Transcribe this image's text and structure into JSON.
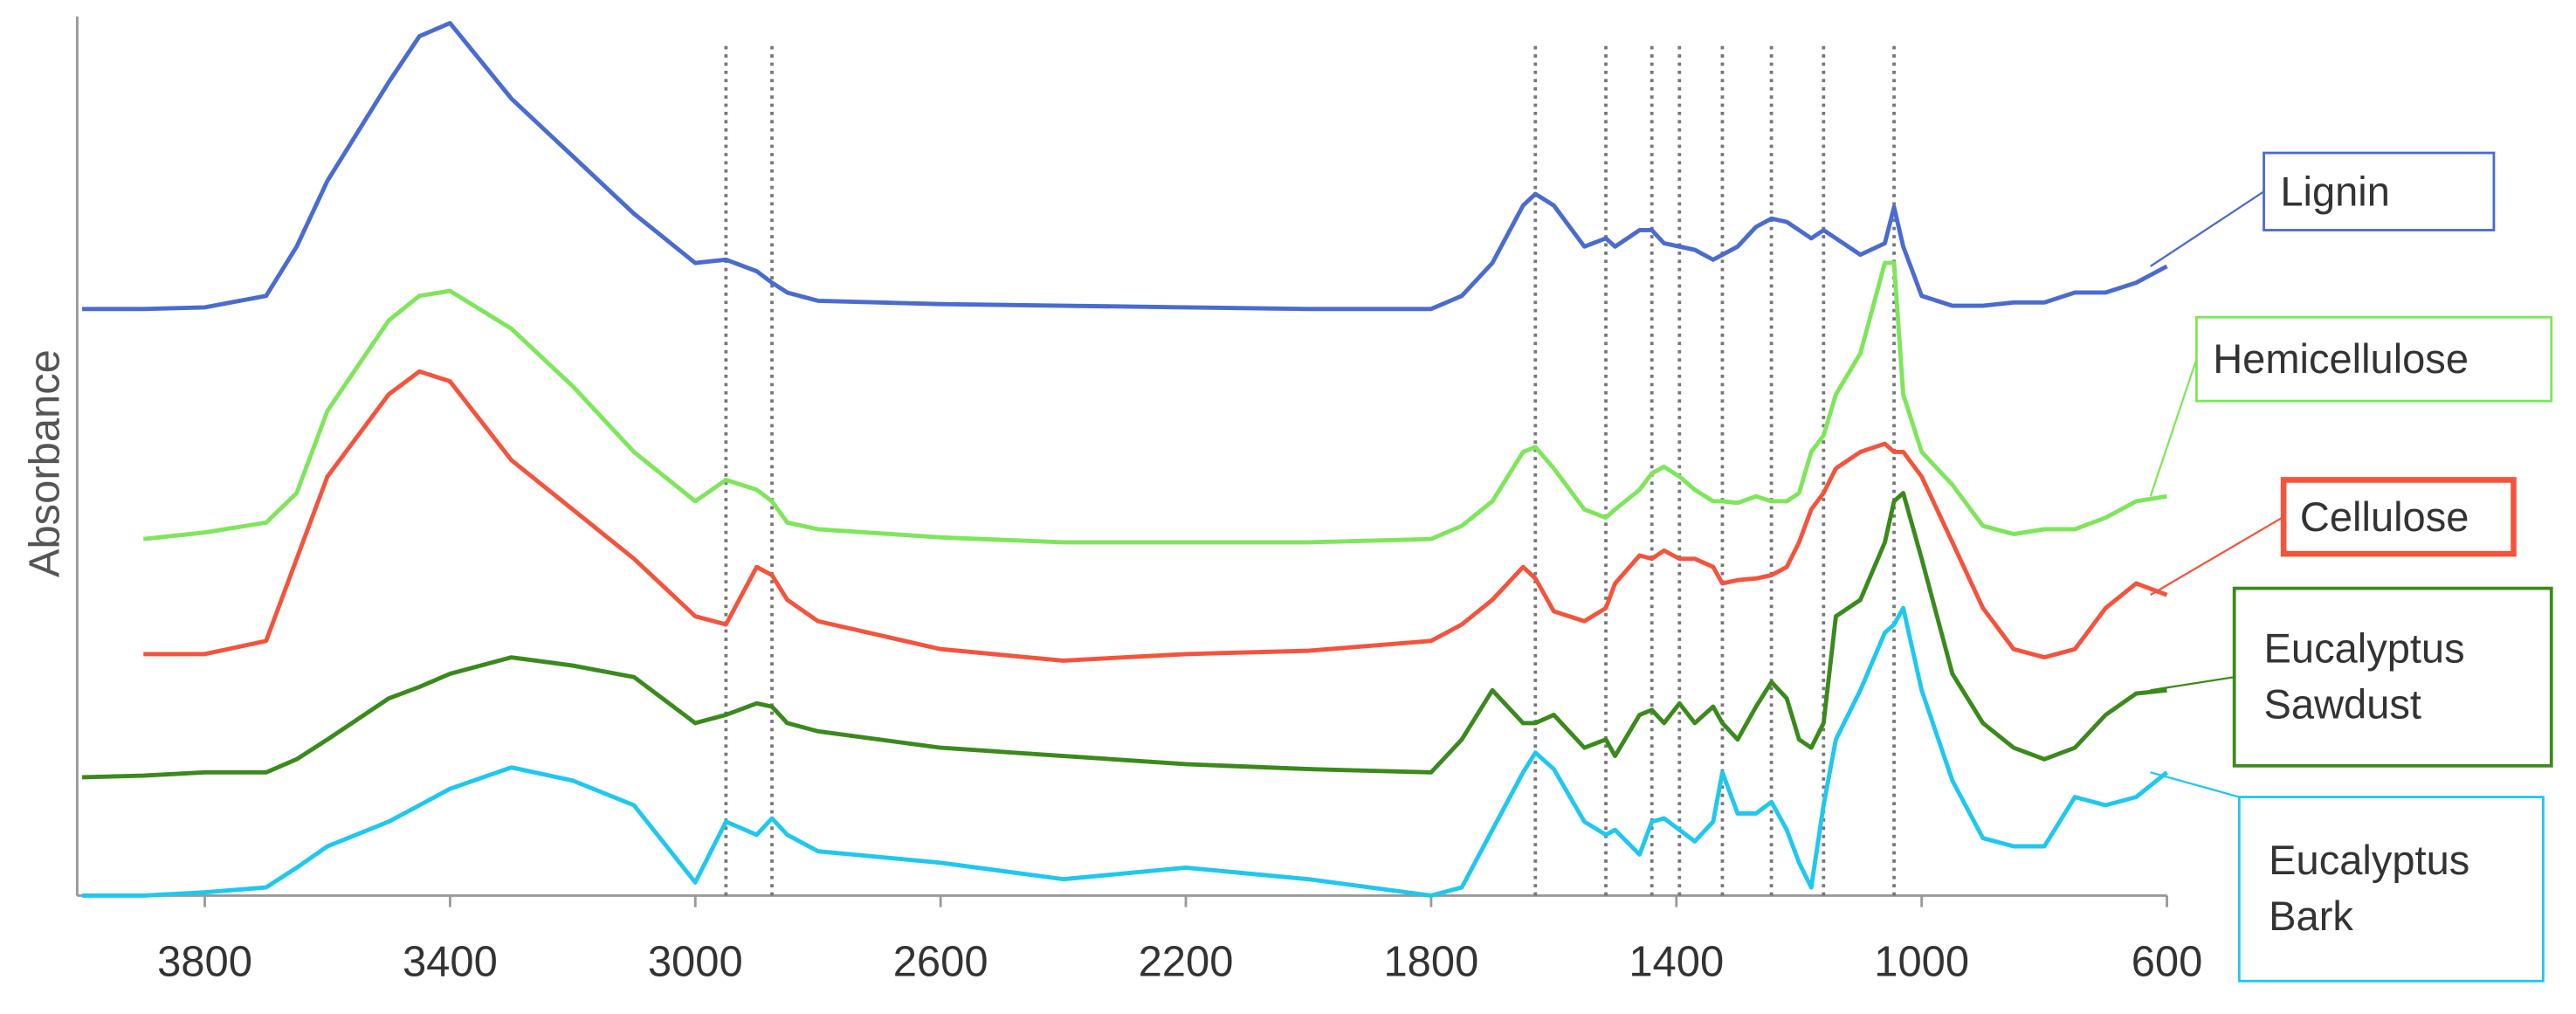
{
  "chart_data": {
    "type": "line",
    "y_label": "Absorbance",
    "x": [
      4000,
      3900,
      3800,
      3700,
      3650,
      3600,
      3500,
      3450,
      3400,
      3300,
      3200,
      3100,
      3000,
      2950,
      2900,
      2875,
      2850,
      2800,
      2600,
      2400,
      2200,
      2000,
      1800,
      1750,
      1700,
      1650,
      1630,
      1600,
      1550,
      1515,
      1500,
      1460,
      1440,
      1420,
      1395,
      1370,
      1340,
      1325,
      1300,
      1270,
      1245,
      1220,
      1200,
      1180,
      1160,
      1140,
      1100,
      1060,
      1045,
      1030,
      1000,
      950,
      900,
      850,
      800,
      750,
      700,
      650,
      600
    ],
    "series": [
      {
        "name": "Lignin",
        "color": "#4a6bd0",
        "values": [
          357,
          357,
          358,
          365,
          395,
          435,
          495,
          523,
          531,
          485,
          450,
          415,
          385,
          387,
          380,
          373,
          367,
          362,
          360,
          359,
          358,
          357,
          357,
          365,
          385,
          420,
          427,
          420,
          395,
          400,
          395,
          405,
          405,
          397,
          395,
          393,
          387,
          390,
          395,
          407,
          412,
          410,
          405,
          400,
          405,
          400,
          390,
          397,
          419,
          395,
          365,
          359,
          359,
          361,
          361,
          367,
          367,
          373,
          383
        ]
      },
      {
        "name": "Hemicellulose",
        "color": "#7ee65a",
        "values": [
          null,
          217,
          221,
          227,
          245,
          295,
          350,
          365,
          368,
          345,
          310,
          270,
          240,
          253,
          247,
          240,
          227,
          223,
          218,
          215,
          215,
          215,
          217,
          225,
          240,
          270,
          273,
          260,
          235,
          230,
          235,
          247,
          257,
          261,
          255,
          247,
          240,
          240,
          239,
          243,
          240,
          240,
          245,
          270,
          280,
          305,
          330,
          385,
          385,
          305,
          270,
          250,
          225,
          220,
          223,
          223,
          230,
          240,
          243
        ]
      },
      {
        "name": "Cellulose",
        "color": "#f4533c",
        "values": [
          null,
          147,
          147,
          155,
          205,
          255,
          305,
          319,
          313,
          265,
          235,
          205,
          170,
          165,
          200,
          195,
          180,
          167,
          150,
          143,
          147,
          149,
          155,
          165,
          180,
          200,
          193,
          173,
          167,
          175,
          190,
          207,
          205,
          210,
          205,
          205,
          200,
          190,
          192,
          193,
          195,
          200,
          215,
          235,
          245,
          260,
          270,
          275,
          270,
          270,
          255,
          215,
          175,
          150,
          145,
          150,
          175,
          190,
          183
        ]
      },
      {
        "name": "Eucalyptus Sawdust",
        "color": "#3a8a1c",
        "values": [
          72,
          73,
          75,
          75,
          83,
          95,
          120,
          127,
          135,
          145,
          140,
          133,
          105,
          110,
          117,
          115,
          105,
          100,
          90,
          85,
          80,
          77,
          75,
          95,
          125,
          105,
          105,
          110,
          90,
          95,
          85,
          110,
          113,
          105,
          117,
          105,
          115,
          105,
          95,
          115,
          130,
          120,
          95,
          90,
          105,
          170,
          180,
          215,
          240,
          245,
          205,
          135,
          105,
          90,
          83,
          90,
          110,
          123,
          125
        ]
      },
      {
        "name": "Eucalyptus Bark",
        "color": "#1ec8ee",
        "values": [
          0,
          0,
          2,
          5,
          17,
          30,
          45,
          55,
          65,
          78,
          70,
          55,
          8,
          45,
          37,
          47,
          37,
          27,
          20,
          10,
          17,
          10,
          0,
          5,
          40,
          75,
          87,
          77,
          45,
          37,
          40,
          25,
          45,
          47,
          40,
          33,
          45,
          75,
          50,
          50,
          57,
          40,
          20,
          5,
          55,
          95,
          125,
          160,
          165,
          175,
          125,
          70,
          35,
          30,
          30,
          60,
          55,
          60,
          75
        ]
      }
    ],
    "xlim": [
      4000,
      600
    ],
    "xticks": [
      3800,
      3400,
      3000,
      2600,
      2200,
      1800,
      1400,
      1000,
      600
    ],
    "ylim": [
      0,
      535
    ],
    "reference_lines": [
      2950,
      2875,
      1630,
      1515,
      1440,
      1395,
      1325,
      1245,
      1160,
      1045
    ],
    "legend": "right",
    "grid": false
  }
}
